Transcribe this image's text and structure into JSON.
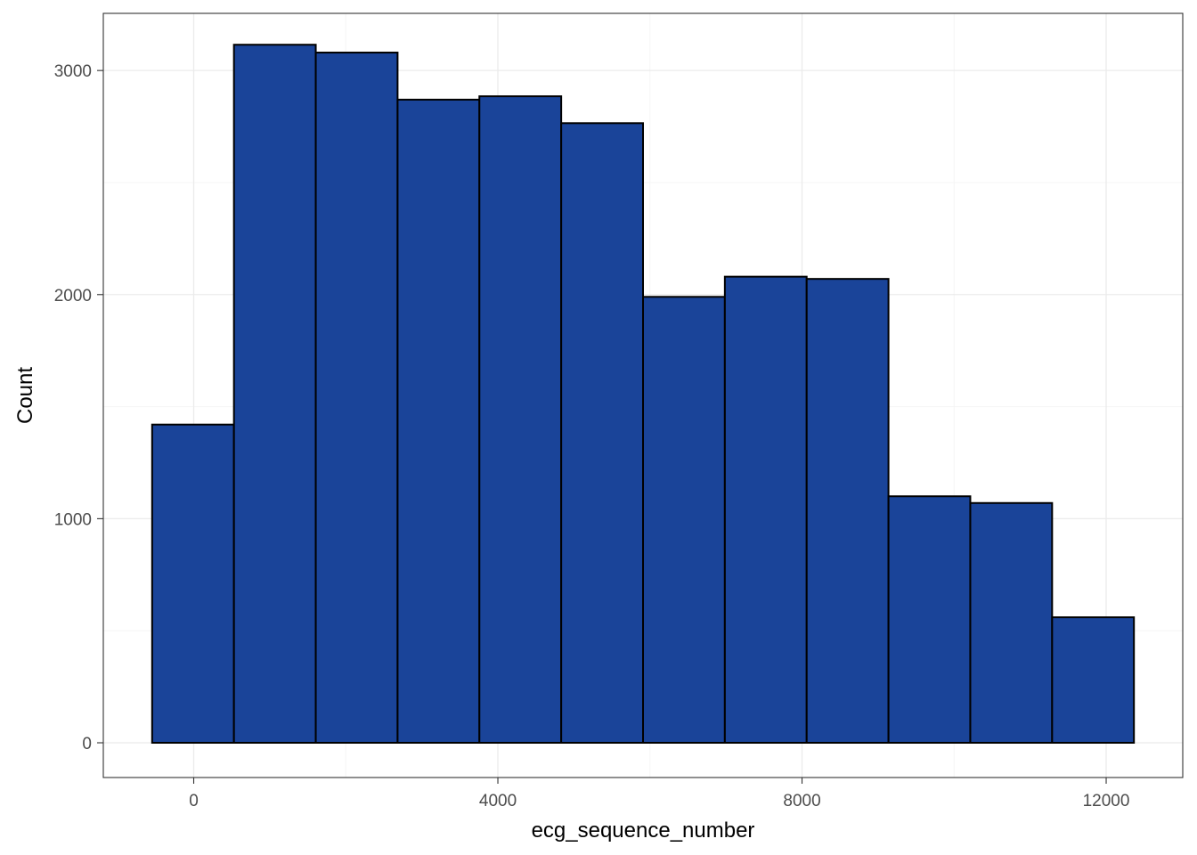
{
  "chart_data": {
    "type": "bar",
    "title": "",
    "xlabel": "ecg_sequence_number",
    "ylabel": "Count",
    "bins": [
      {
        "x0": -547,
        "x1": 529,
        "count": 1420
      },
      {
        "x0": 529,
        "x1": 1605,
        "count": 3115
      },
      {
        "x0": 1605,
        "x1": 2681,
        "count": 3080
      },
      {
        "x0": 2681,
        "x1": 3757,
        "count": 2870
      },
      {
        "x0": 3757,
        "x1": 4833,
        "count": 2885
      },
      {
        "x0": 4833,
        "x1": 5909,
        "count": 2765
      },
      {
        "x0": 5909,
        "x1": 6985,
        "count": 1990
      },
      {
        "x0": 6985,
        "x1": 8061,
        "count": 2080
      },
      {
        "x0": 8061,
        "x1": 9137,
        "count": 2070
      },
      {
        "x0": 9137,
        "x1": 10213,
        "count": 1100
      },
      {
        "x0": 10213,
        "x1": 11289,
        "count": 1070
      },
      {
        "x0": 11289,
        "x1": 12365,
        "count": 560
      }
    ],
    "xlim": [
      -1189,
      13007
    ],
    "ylim": [
      -155,
      3255
    ],
    "x_ticks": [
      0,
      4000,
      8000,
      12000
    ],
    "x_tick_labels": [
      "0",
      "4000",
      "8000",
      "12000"
    ],
    "x_minor_ticks": [
      2000,
      6000,
      10000
    ],
    "y_ticks": [
      0,
      1000,
      2000,
      3000
    ],
    "y_tick_labels": [
      "0",
      "1000",
      "2000",
      "3000"
    ],
    "y_minor_ticks": [
      500,
      1500,
      2500
    ],
    "grid": true,
    "colors": {
      "bar_fill": "#1a4499",
      "bar_stroke": "#000000",
      "grid_major": "#ebebeb",
      "grid_minor": "#f5f5f5",
      "panel_border": "#333333"
    }
  }
}
